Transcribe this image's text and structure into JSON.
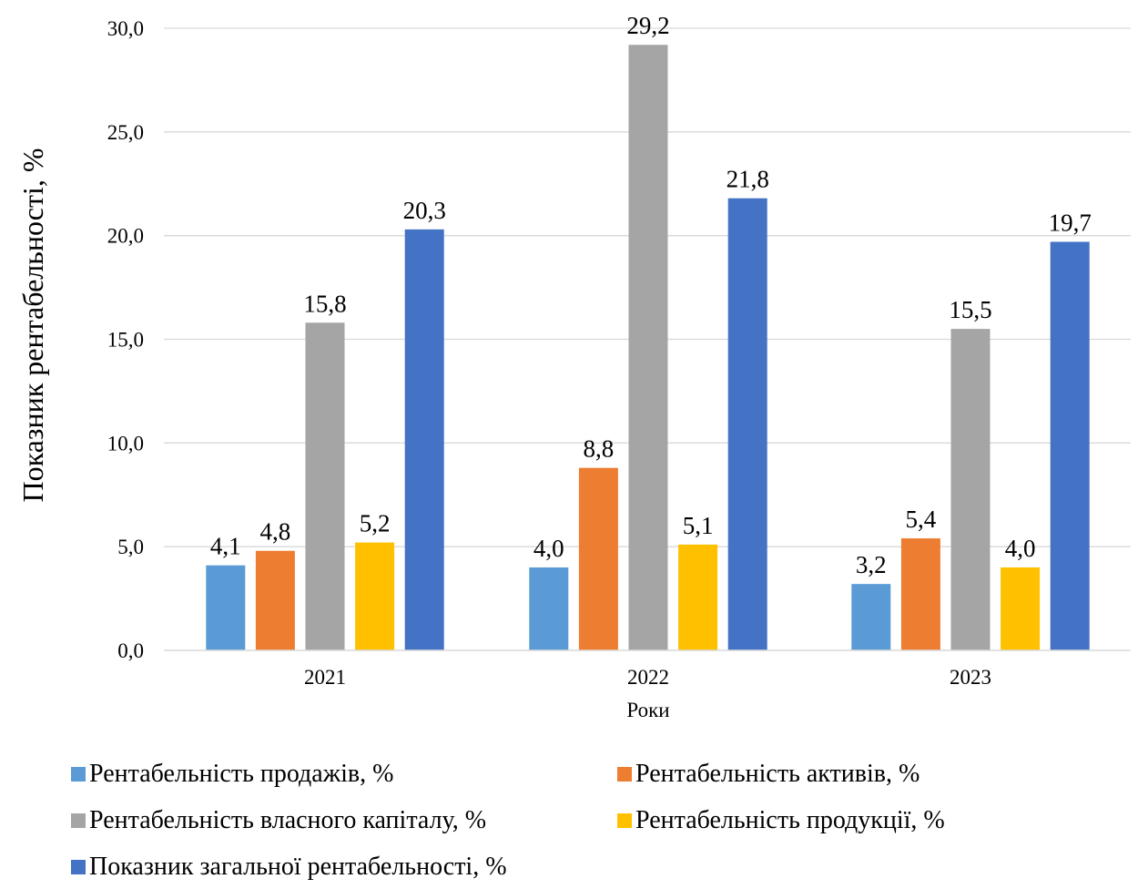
{
  "chart_data": {
    "type": "bar",
    "title": "",
    "xlabel": "Роки",
    "ylabel": "Показник рентабельності, %",
    "categories": [
      "2021",
      "2022",
      "2023"
    ],
    "ylim": [
      0,
      30
    ],
    "yticks": [
      0,
      5,
      10,
      15,
      20,
      25,
      30
    ],
    "ytick_labels": [
      "0,0",
      "5,0",
      "10,0",
      "15,0",
      "20,0",
      "25,0",
      "30,0"
    ],
    "grid": true,
    "legend_position": "bottom",
    "series": [
      {
        "name": "Рентабельність продажів, %",
        "color": "#5B9BD5",
        "values": [
          4.1,
          4.0,
          3.2
        ],
        "labels": [
          "4,1",
          "4,0",
          "3,2"
        ]
      },
      {
        "name": "Рентабельність активів, %",
        "color": "#ED7D31",
        "values": [
          4.8,
          8.8,
          5.4
        ],
        "labels": [
          "4,8",
          "8,8",
          "5,4"
        ]
      },
      {
        "name": "Рентабельність власного капіталу, %",
        "color": "#A5A5A5",
        "values": [
          15.8,
          29.2,
          15.5
        ],
        "labels": [
          "15,8",
          "29,2",
          "15,5"
        ]
      },
      {
        "name": "Рентабельність продукції, %",
        "color": "#FFC000",
        "values": [
          5.2,
          5.1,
          4.0
        ],
        "labels": [
          "5,2",
          "5,1",
          "4,0"
        ]
      },
      {
        "name": "Показник загальної рентабельності, %",
        "color": "#4472C4",
        "values": [
          20.3,
          21.8,
          19.7
        ],
        "labels": [
          "20,3",
          "21,8",
          "19,7"
        ]
      }
    ]
  }
}
